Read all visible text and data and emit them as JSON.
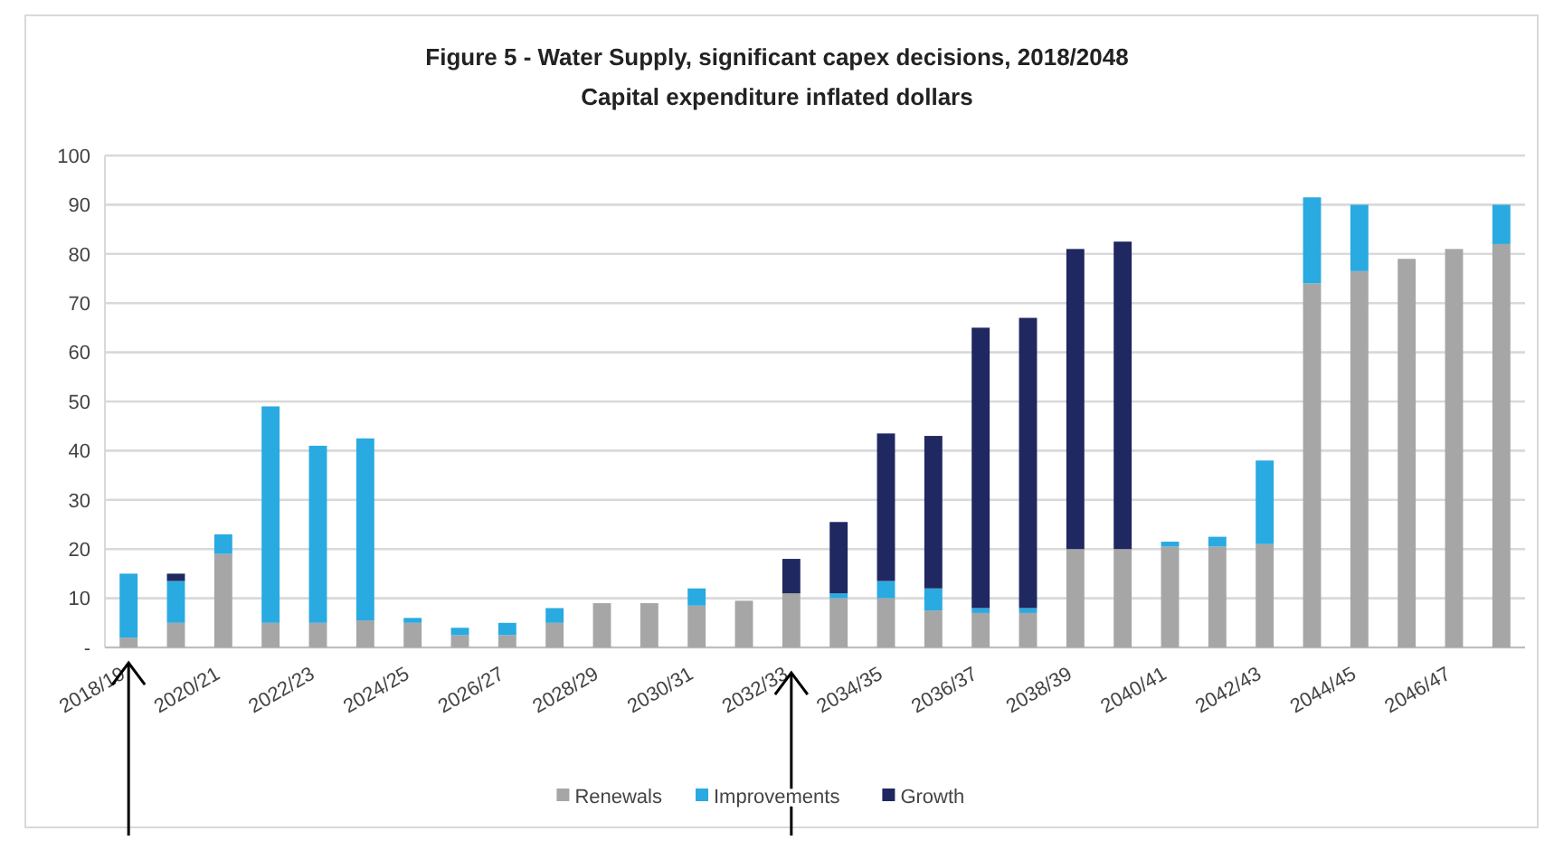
{
  "chart_data": {
    "type": "bar",
    "title": "Figure 5 - Water Supply, significant capex decisions, 2018/2048",
    "subtitle": "Capital expenditure inflated dollars",
    "categories": [
      "2018/19",
      null,
      "2020/21",
      null,
      "2022/23",
      null,
      "2024/25",
      null,
      "2026/27",
      null,
      "2028/29",
      null,
      "2030/31",
      null,
      "2032/33",
      null,
      "2034/35",
      null,
      "2036/37",
      null,
      "2038/39",
      null,
      "2040/41",
      null,
      "2042/43",
      null,
      "2044/45",
      null,
      "2046/47",
      null
    ],
    "series": [
      {
        "name": "Renewals",
        "color": "#a6a6a6",
        "values": [
          2,
          5,
          19,
          5,
          5,
          5.5,
          5,
          2.5,
          2.5,
          5,
          9,
          9,
          8.5,
          9.5,
          11,
          10,
          10,
          7.5,
          7,
          7,
          20,
          20,
          20.5,
          20.5,
          21,
          74,
          76.5,
          79,
          81,
          82
        ]
      },
      {
        "name": "Improvements",
        "color": "#29aae1",
        "values": [
          13,
          8.5,
          4,
          44,
          36,
          37,
          1,
          1.5,
          2.5,
          3,
          0,
          0,
          3.5,
          0,
          0,
          1,
          3.5,
          4.5,
          1,
          1,
          0,
          0,
          1,
          2,
          17,
          17.5,
          13.5,
          0,
          0,
          8
        ]
      },
      {
        "name": "Growth",
        "color": "#1f2860",
        "values": [
          0,
          1.5,
          0,
          0,
          0,
          0,
          0,
          0,
          0,
          0,
          0,
          0,
          0,
          0,
          7,
          14.5,
          30,
          31,
          57,
          59,
          61,
          62.5,
          0,
          0,
          0,
          0,
          0,
          0,
          0,
          0
        ]
      }
    ],
    "stacked": true,
    "ylim": [
      0,
      100
    ],
    "yticks": [
      {
        "value": 0,
        "label": "-"
      },
      10,
      20,
      30,
      40,
      50,
      60,
      70,
      80,
      90,
      100
    ],
    "grid": "y",
    "legend": "bottom"
  }
}
